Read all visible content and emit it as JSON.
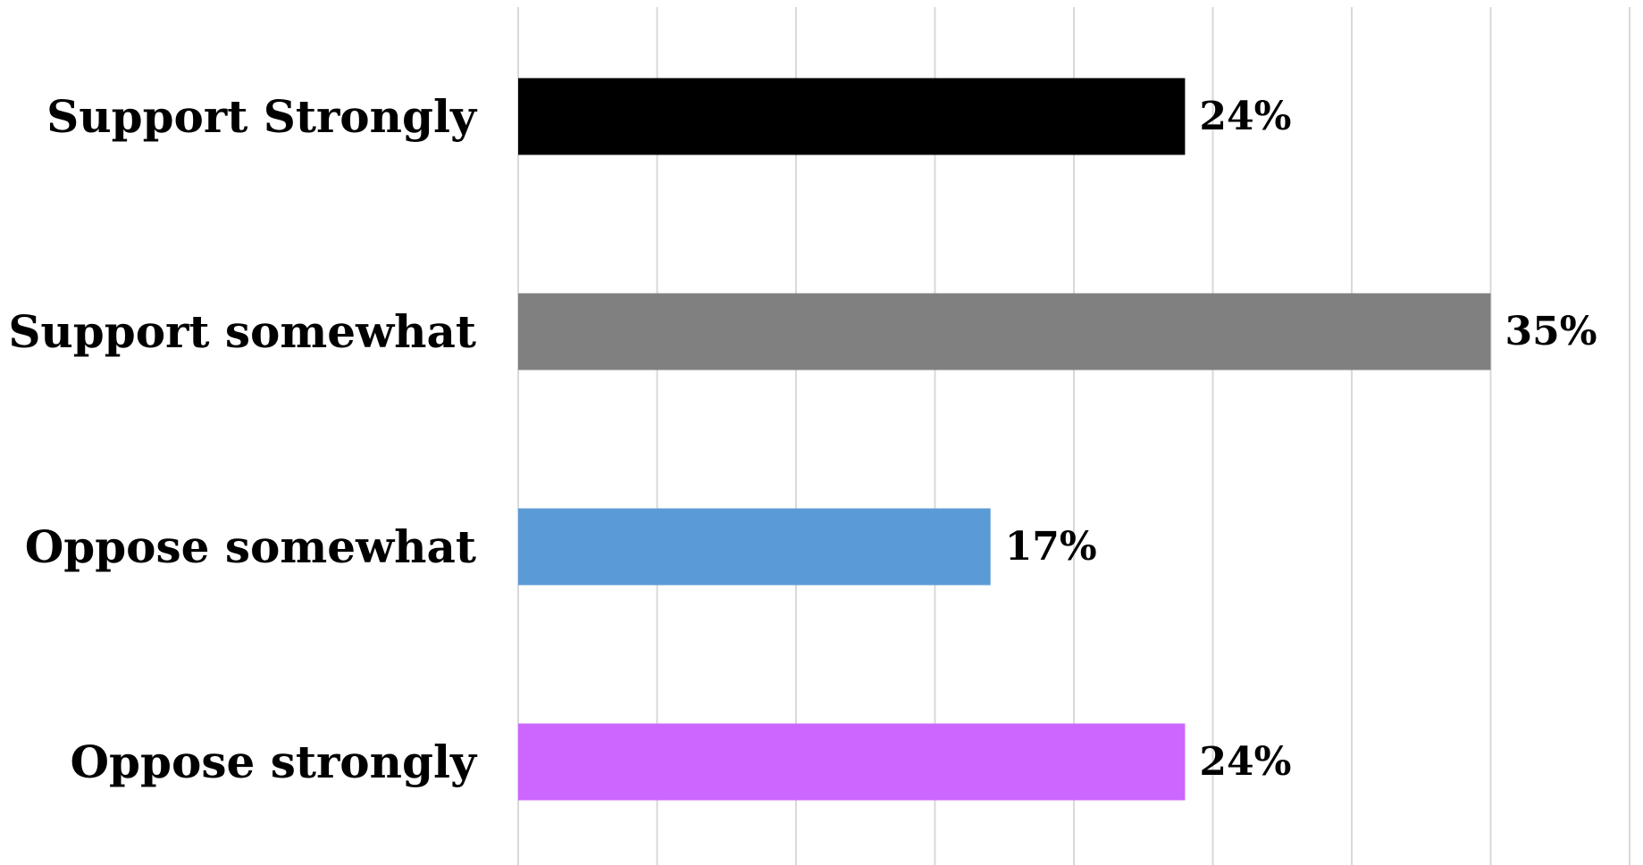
{
  "chart_data": {
    "type": "bar",
    "orientation": "horizontal",
    "categories": [
      "Support Strongly",
      "Support somewhat",
      "Oppose somewhat",
      "Oppose strongly"
    ],
    "values": [
      24,
      35,
      17,
      24
    ],
    "value_labels": [
      "24%",
      "35%",
      "17%",
      "24%"
    ],
    "colors": [
      "#000000",
      "#808080",
      "#5b9bd5",
      "#cc66ff"
    ],
    "gridline_color": "#d9d9d9",
    "xlim": [
      0,
      40
    ],
    "grid": true,
    "title": "",
    "xlabel": "",
    "ylabel": ""
  }
}
